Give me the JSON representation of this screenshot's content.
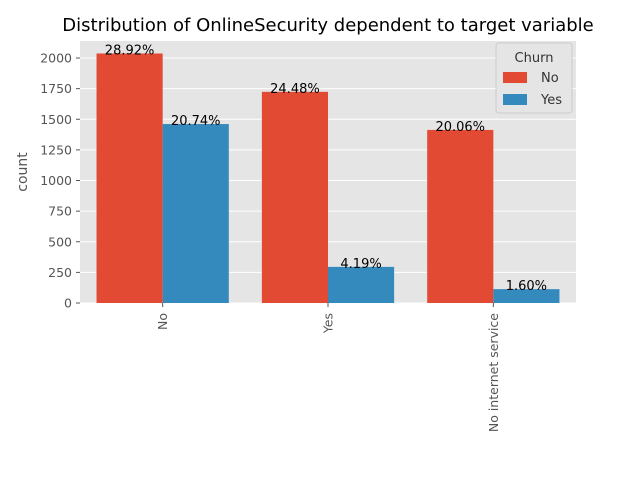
{
  "chart_data": {
    "type": "bar",
    "title": "Distribution of OnlineSecurity dependent to target variable",
    "xlabel": "",
    "ylabel": "count",
    "categories": [
      "No",
      "Yes",
      "No internet service"
    ],
    "series": [
      {
        "name": "No",
        "color": "#E24A33",
        "values": [
          2037,
          1724,
          1413
        ],
        "labels": [
          "28.92%",
          "24.48%",
          "20.06%"
        ]
      },
      {
        "name": "Yes",
        "color": "#348ABD",
        "values": [
          1461,
          295,
          113
        ],
        "labels": [
          "20.74%",
          "4.19%",
          "1.60%"
        ]
      }
    ],
    "yticks": [
      "0",
      "250",
      "500",
      "750",
      "1000",
      "1250",
      "1500",
      "1750",
      "2000"
    ],
    "ylim": [
      0,
      2139
    ],
    "grid": true,
    "legend": {
      "title": "Churn",
      "position": "top-right"
    },
    "background": "#E5E5E5",
    "gridcolor": "#FFFFFF"
  }
}
